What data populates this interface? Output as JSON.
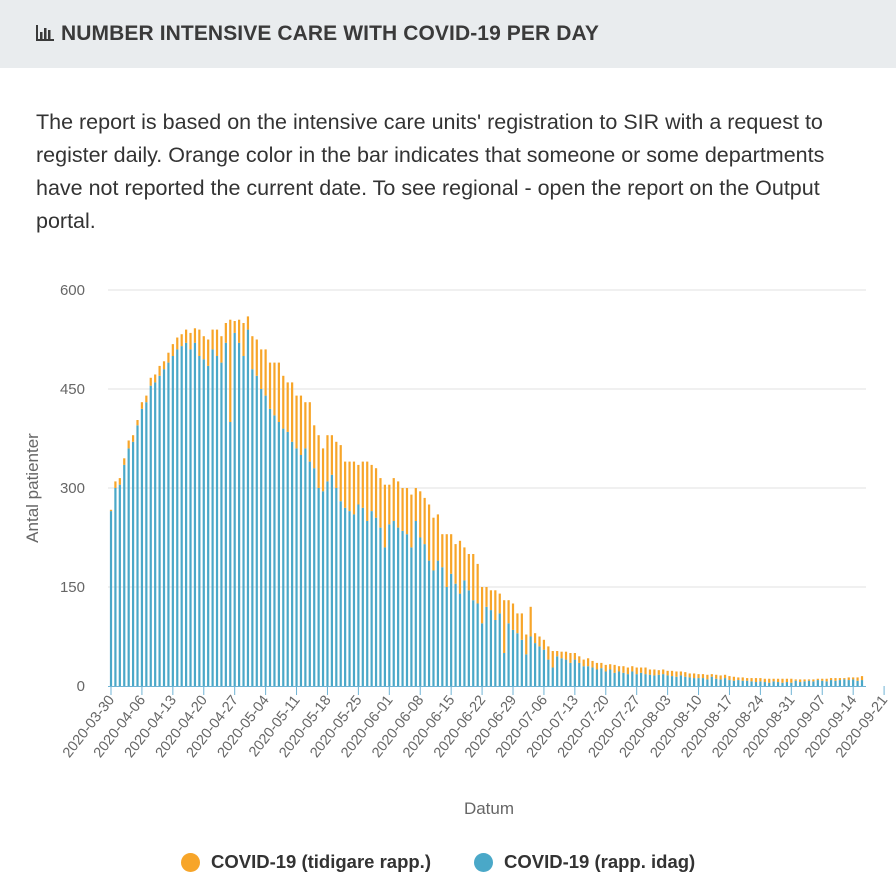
{
  "header": {
    "title": "NUMBER INTENSIVE CARE WITH COVID-19 PER DAY",
    "icon": "bar-chart-icon"
  },
  "description": "The report is based on the intensive care units' registration to SIR with a request to register daily. Orange color in the bar indicates that someone or some departments have not reported the current date. To see regional - open the report on the Output portal.",
  "colors": {
    "current": "#4aa8c8",
    "earlier": "#f7a529",
    "grid": "#e1e1e1",
    "axis": "#6fb3d4",
    "text": "#666666"
  },
  "chart_data": {
    "type": "bar",
    "stacked": true,
    "xlabel": "Datum",
    "ylabel": "Antal patienter",
    "ylim": [
      0,
      600
    ],
    "yticks": [
      0,
      150,
      300,
      450,
      600
    ],
    "grid": true,
    "legend_position": "bottom",
    "x_start": "2020-03-30",
    "x_end": "2020-09-22",
    "xticks": [
      "2020-03-30",
      "2020-04-06",
      "2020-04-13",
      "2020-04-20",
      "2020-04-27",
      "2020-05-04",
      "2020-05-11",
      "2020-05-18",
      "2020-05-25",
      "2020-06-01",
      "2020-06-08",
      "2020-06-15",
      "2020-06-22",
      "2020-06-29",
      "2020-07-06",
      "2020-07-13",
      "2020-07-20",
      "2020-07-27",
      "2020-08-03",
      "2020-08-10",
      "2020-08-17",
      "2020-08-24",
      "2020-08-31",
      "2020-09-07",
      "2020-09-14",
      "2020-09-21"
    ],
    "series": [
      {
        "name": "COVID-19 (rapp. idag)",
        "color": "#4aa8c8",
        "values": [
          265,
          300,
          305,
          335,
          360,
          370,
          395,
          420,
          430,
          455,
          460,
          470,
          480,
          490,
          500,
          510,
          515,
          520,
          510,
          520,
          500,
          495,
          485,
          510,
          500,
          490,
          520,
          400,
          535,
          520,
          500,
          540,
          480,
          470,
          450,
          440,
          420,
          410,
          400,
          390,
          385,
          370,
          360,
          350,
          360,
          340,
          330,
          300,
          295,
          310,
          320,
          300,
          280,
          270,
          265,
          260,
          275,
          270,
          250,
          265,
          255,
          240,
          210,
          245,
          250,
          240,
          235,
          230,
          210,
          250,
          225,
          215,
          190,
          175,
          190,
          180,
          150,
          170,
          155,
          140,
          160,
          145,
          130,
          125,
          95,
          120,
          115,
          100,
          110,
          50,
          95,
          85,
          80,
          70,
          48,
          75,
          65,
          60,
          55,
          40,
          28,
          45,
          42,
          40,
          35,
          40,
          35,
          30,
          30,
          28,
          25,
          27,
          22,
          25,
          20,
          22,
          20,
          18,
          22,
          18,
          20,
          18,
          17,
          16,
          17,
          18,
          16,
          15,
          14,
          16,
          14,
          13,
          12,
          12,
          12,
          10,
          14,
          11,
          10,
          12,
          9,
          8,
          9,
          8,
          8,
          7,
          6,
          7,
          6,
          5,
          7,
          6,
          5,
          6,
          5,
          8,
          6,
          7,
          8,
          7,
          9,
          8,
          7,
          9,
          8,
          9,
          10,
          9,
          10,
          8,
          9
        ],
        "earlier_values": [
          2,
          10,
          10,
          10,
          12,
          10,
          8,
          10,
          10,
          12,
          12,
          15,
          12,
          15,
          18,
          18,
          18,
          20,
          25,
          22,
          40,
          35,
          40,
          30,
          40,
          40,
          30,
          155,
          18,
          35,
          50,
          20,
          50,
          55,
          60,
          70,
          70,
          80,
          90,
          80,
          75,
          90,
          80,
          90,
          70,
          90,
          65,
          80,
          65,
          70,
          60,
          70,
          85,
          70,
          75,
          80,
          60,
          70,
          90,
          70,
          75,
          75,
          95,
          60,
          65,
          70,
          65,
          70,
          80,
          50,
          70,
          70,
          85,
          80,
          70,
          50,
          80,
          60,
          60,
          80,
          50,
          55,
          70,
          60,
          55,
          30,
          30,
          45,
          30,
          80,
          35,
          40,
          30,
          40,
          30,
          45,
          15,
          15,
          15,
          20,
          25,
          8,
          10,
          12,
          15,
          10,
          10,
          10,
          12,
          10,
          10,
          8,
          10,
          8,
          12,
          8,
          10,
          10,
          8,
          10,
          8,
          10,
          8,
          9,
          7,
          7,
          7,
          8,
          8,
          6,
          7,
          6,
          7,
          6,
          6,
          7,
          4,
          6,
          6,
          5,
          6,
          6,
          4,
          5,
          4,
          5,
          6,
          5,
          5,
          6,
          4,
          5,
          6,
          5,
          6,
          2,
          4,
          3,
          2,
          3,
          2,
          3,
          4,
          3,
          4,
          3,
          2,
          4,
          3,
          5,
          6
        ]
      },
      {
        "name": "COVID-19 (tidigare rapp.)",
        "color": "#f7a529"
      }
    ]
  },
  "legend": [
    {
      "label": "COVID-19 (tidigare rapp.)",
      "color": "#f7a529"
    },
    {
      "label": "COVID-19 (rapp. idag)",
      "color": "#4aa8c8"
    }
  ]
}
